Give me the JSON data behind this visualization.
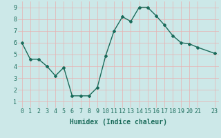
{
  "x": [
    0,
    1,
    2,
    3,
    4,
    5,
    6,
    7,
    8,
    9,
    10,
    11,
    12,
    13,
    14,
    15,
    16,
    17,
    18,
    19,
    20,
    21,
    23
  ],
  "y": [
    6.0,
    4.6,
    4.6,
    4.0,
    3.2,
    3.9,
    1.5,
    1.5,
    1.5,
    2.2,
    4.9,
    7.0,
    8.2,
    7.8,
    9.0,
    9.0,
    8.3,
    7.5,
    6.6,
    6.0,
    5.9,
    5.6,
    5.1
  ],
  "line_color": "#1a6b5a",
  "marker": "D",
  "marker_size": 2.0,
  "line_width": 1.0,
  "bg_color": "#cce8e8",
  "grid_color_major": "#e8b0b0",
  "grid_color_minor": "#e8b0b0",
  "xlabel": "Humidex (Indice chaleur)",
  "xlabel_fontsize": 7,
  "tick_fontsize": 6,
  "xlim": [
    -0.5,
    23.5
  ],
  "ylim": [
    0.5,
    9.5
  ],
  "yticks": [
    1,
    2,
    3,
    4,
    5,
    6,
    7,
    8,
    9
  ],
  "xticks": [
    0,
    1,
    2,
    3,
    4,
    5,
    6,
    7,
    8,
    9,
    10,
    11,
    12,
    13,
    14,
    15,
    16,
    17,
    18,
    19,
    20,
    21,
    23
  ]
}
